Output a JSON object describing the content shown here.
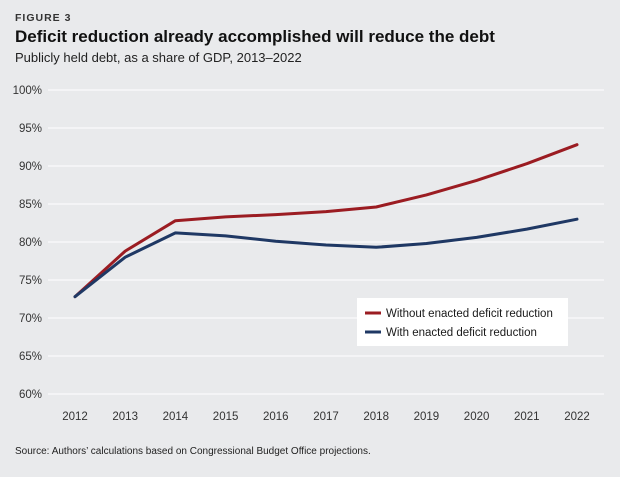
{
  "figure_label": "FIGURE 3",
  "title": "Deficit reduction already accomplished will reduce the debt",
  "subtitle": "Publicly held debt, as a share of GDP, 2013–2022",
  "source": "Source: Authors’ calculations based on Congressional Budget Office projections.",
  "colors": {
    "without": "#9b1c22",
    "with": "#1f3864",
    "grid": "#ffffff",
    "background": "#e9eaec"
  },
  "chart_data": {
    "type": "line",
    "title": "Deficit reduction already accomplished will reduce the debt",
    "xlabel": "",
    "ylabel": "",
    "x": [
      2012,
      2013,
      2014,
      2015,
      2016,
      2017,
      2018,
      2019,
      2020,
      2021,
      2022
    ],
    "x_tick_labels": [
      "2012",
      "2013",
      "2014",
      "2015",
      "2016",
      "2017",
      "2018",
      "2019",
      "2020",
      "2021",
      "2022"
    ],
    "ylim": [
      60,
      100
    ],
    "y_ticks": [
      60,
      65,
      70,
      75,
      80,
      85,
      90,
      95,
      100
    ],
    "y_tick_labels": [
      "60%",
      "65%",
      "70%",
      "75%",
      "80%",
      "85%",
      "90%",
      "95%",
      "100%"
    ],
    "grid": true,
    "legend_position": "bottom-right",
    "series": [
      {
        "name": "Without enacted deficit reduction",
        "color": "#9b1c22",
        "values": [
          72.8,
          78.8,
          82.8,
          83.3,
          83.6,
          84.0,
          84.6,
          86.2,
          88.1,
          90.3,
          92.8
        ]
      },
      {
        "name": "With enacted deficit reduction",
        "color": "#1f3864",
        "values": [
          72.8,
          78.0,
          81.2,
          80.8,
          80.1,
          79.6,
          79.3,
          79.8,
          80.6,
          81.7,
          83.0
        ]
      }
    ]
  }
}
